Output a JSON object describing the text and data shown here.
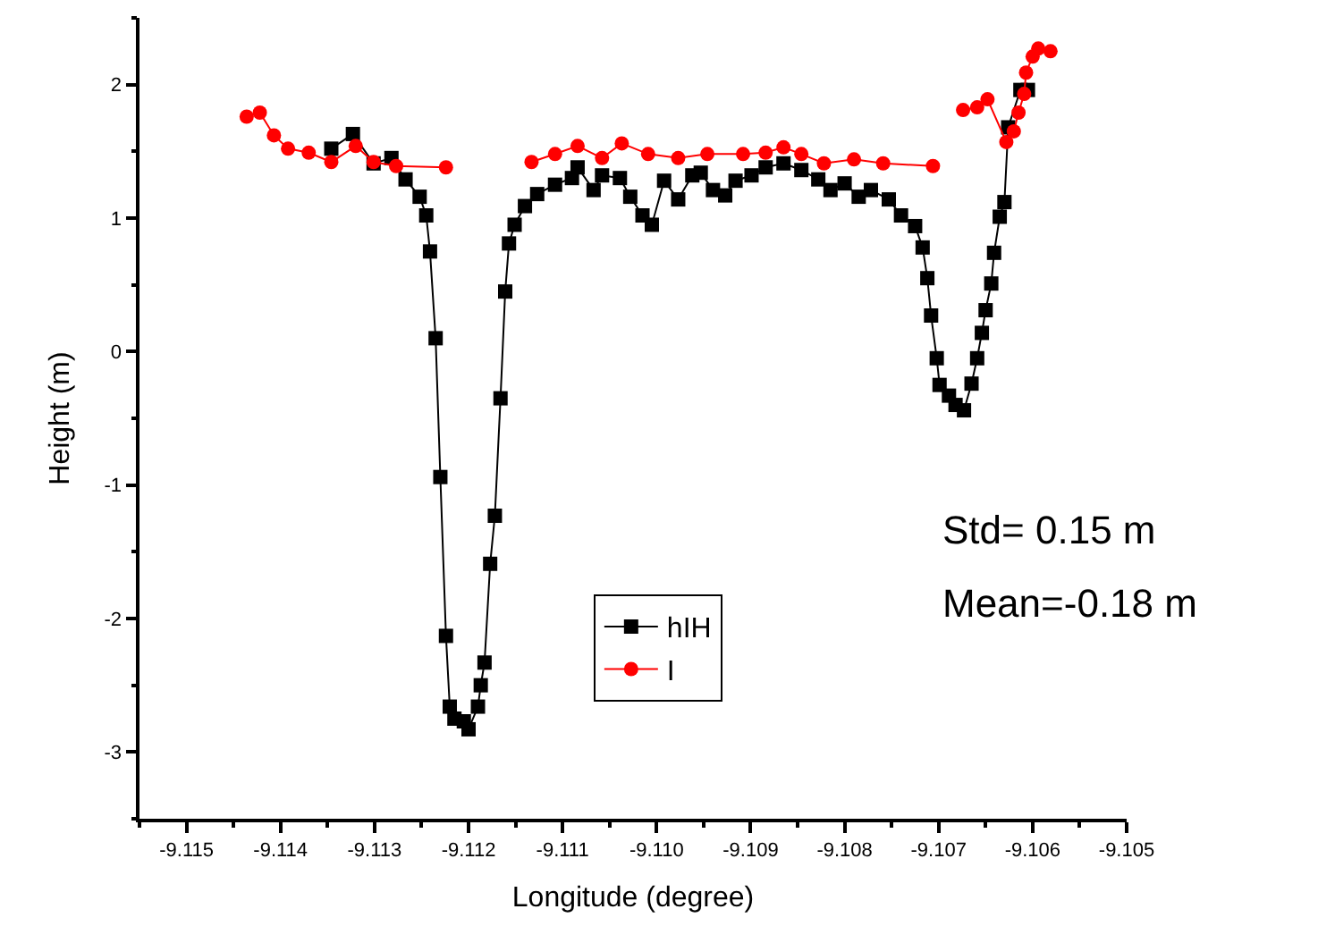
{
  "chart_data": {
    "type": "line",
    "xlabel": "Longitude (degree)",
    "ylabel": "Height (m)",
    "xlim": [
      -9.1155,
      -9.105
    ],
    "xticks": [
      {
        "value": -9.115,
        "label": "-9.115"
      },
      {
        "value": -9.114,
        "label": "-9.114"
      },
      {
        "value": -9.113,
        "label": "-9.113"
      },
      {
        "value": -9.112,
        "label": "-9.112"
      },
      {
        "value": -9.111,
        "label": "-9.111"
      },
      {
        "value": -9.11,
        "label": "-9.110"
      },
      {
        "value": -9.109,
        "label": "-9.109"
      },
      {
        "value": -9.108,
        "label": "-9.108"
      },
      {
        "value": -9.107,
        "label": "-9.107"
      },
      {
        "value": -9.106,
        "label": "-9.106"
      },
      {
        "value": -9.105,
        "label": "-9.105"
      }
    ],
    "ylim": [
      -3.5,
      2.5
    ],
    "yticks": [
      -3,
      -2,
      -1,
      0,
      1,
      2
    ],
    "legend": "bottom",
    "annotations": [
      "Std= 0.15 m",
      "Mean=-0.18 m"
    ],
    "series": [
      {
        "name": "hIH",
        "color": "#000000",
        "marker": "square",
        "x": [
          -9.11346,
          -9.11323,
          -9.11301,
          -9.11282,
          -9.11267,
          -9.11252,
          -9.11245,
          -9.11241,
          -9.11235,
          -9.1123,
          -9.11224,
          -9.1122,
          -9.11215,
          -9.11205,
          -9.112,
          -9.1119,
          -9.11187,
          -9.11183,
          -9.11177,
          -9.11172,
          -9.11166,
          -9.11161,
          -9.11157,
          -9.11151,
          -9.1114,
          -9.11127,
          -9.11108,
          -9.1109,
          -9.11084,
          -9.11067,
          -9.11058,
          -9.11039,
          -9.11028,
          -9.11015,
          -9.11005,
          -9.10992,
          -9.10977,
          -9.10962,
          -9.10953,
          -9.1094,
          -9.10927,
          -9.10916,
          -9.10899,
          -9.10884,
          -9.10865,
          -9.10846,
          -9.10828,
          -9.10815,
          -9.108,
          -9.10785,
          -9.10772,
          -9.10753,
          -9.1074,
          -9.10725,
          -9.10717,
          -9.10712,
          -9.10708,
          -9.10702,
          -9.10699,
          -9.10689,
          -9.10682,
          -9.10673,
          -9.10665,
          -9.10659,
          -9.10654,
          -9.1065,
          -9.10644,
          -9.10641,
          -9.10635,
          -9.1063,
          -9.10626,
          -9.10613,
          -9.10605
        ],
        "values": [
          1.52,
          1.63,
          1.41,
          1.45,
          1.29,
          1.16,
          1.02,
          0.75,
          0.1,
          -0.94,
          -2.13,
          -2.66,
          -2.75,
          -2.77,
          -2.83,
          -2.66,
          -2.5,
          -2.33,
          -1.59,
          -1.23,
          -0.35,
          0.45,
          0.81,
          0.95,
          1.09,
          1.18,
          1.25,
          1.3,
          1.38,
          1.21,
          1.32,
          1.3,
          1.16,
          1.02,
          0.95,
          1.28,
          1.14,
          1.32,
          1.34,
          1.21,
          1.17,
          1.28,
          1.32,
          1.38,
          1.41,
          1.36,
          1.29,
          1.21,
          1.26,
          1.16,
          1.21,
          1.14,
          1.02,
          0.94,
          0.78,
          0.55,
          0.27,
          -0.05,
          -0.25,
          -0.33,
          -0.4,
          -0.44,
          -0.24,
          -0.05,
          0.14,
          0.31,
          0.51,
          0.74,
          1.01,
          1.12,
          1.68,
          1.96,
          1.96
        ]
      },
      {
        "name": "I",
        "color": "#ff0000",
        "marker": "circle",
        "x": [
          -9.11436,
          -9.11422,
          -9.11407,
          -9.11392,
          -9.1137,
          -9.11346,
          -9.1132,
          -9.11301,
          -9.11277,
          -9.11224,
          null,
          -9.11133,
          -9.11108,
          -9.11084,
          -9.11058,
          -9.11037,
          -9.11009,
          -9.10977,
          -9.10946,
          -9.10908,
          -9.10884,
          -9.10865,
          -9.10846,
          -9.10822,
          -9.1079,
          -9.10759,
          -9.10706,
          null,
          -9.10674,
          -9.10659,
          -9.10648,
          -9.10628,
          -9.1062,
          -9.10615,
          -9.10609,
          -9.10607,
          -9.106,
          -9.10594,
          -9.10581
        ],
        "values": [
          1.76,
          1.79,
          1.62,
          1.52,
          1.49,
          1.42,
          1.54,
          1.42,
          1.39,
          1.38,
          null,
          1.42,
          1.48,
          1.54,
          1.45,
          1.56,
          1.48,
          1.45,
          1.48,
          1.48,
          1.49,
          1.53,
          1.48,
          1.41,
          1.44,
          1.41,
          1.39,
          null,
          1.81,
          1.83,
          1.89,
          1.57,
          1.65,
          1.79,
          1.93,
          2.09,
          2.21,
          2.27,
          2.25
        ]
      }
    ]
  }
}
